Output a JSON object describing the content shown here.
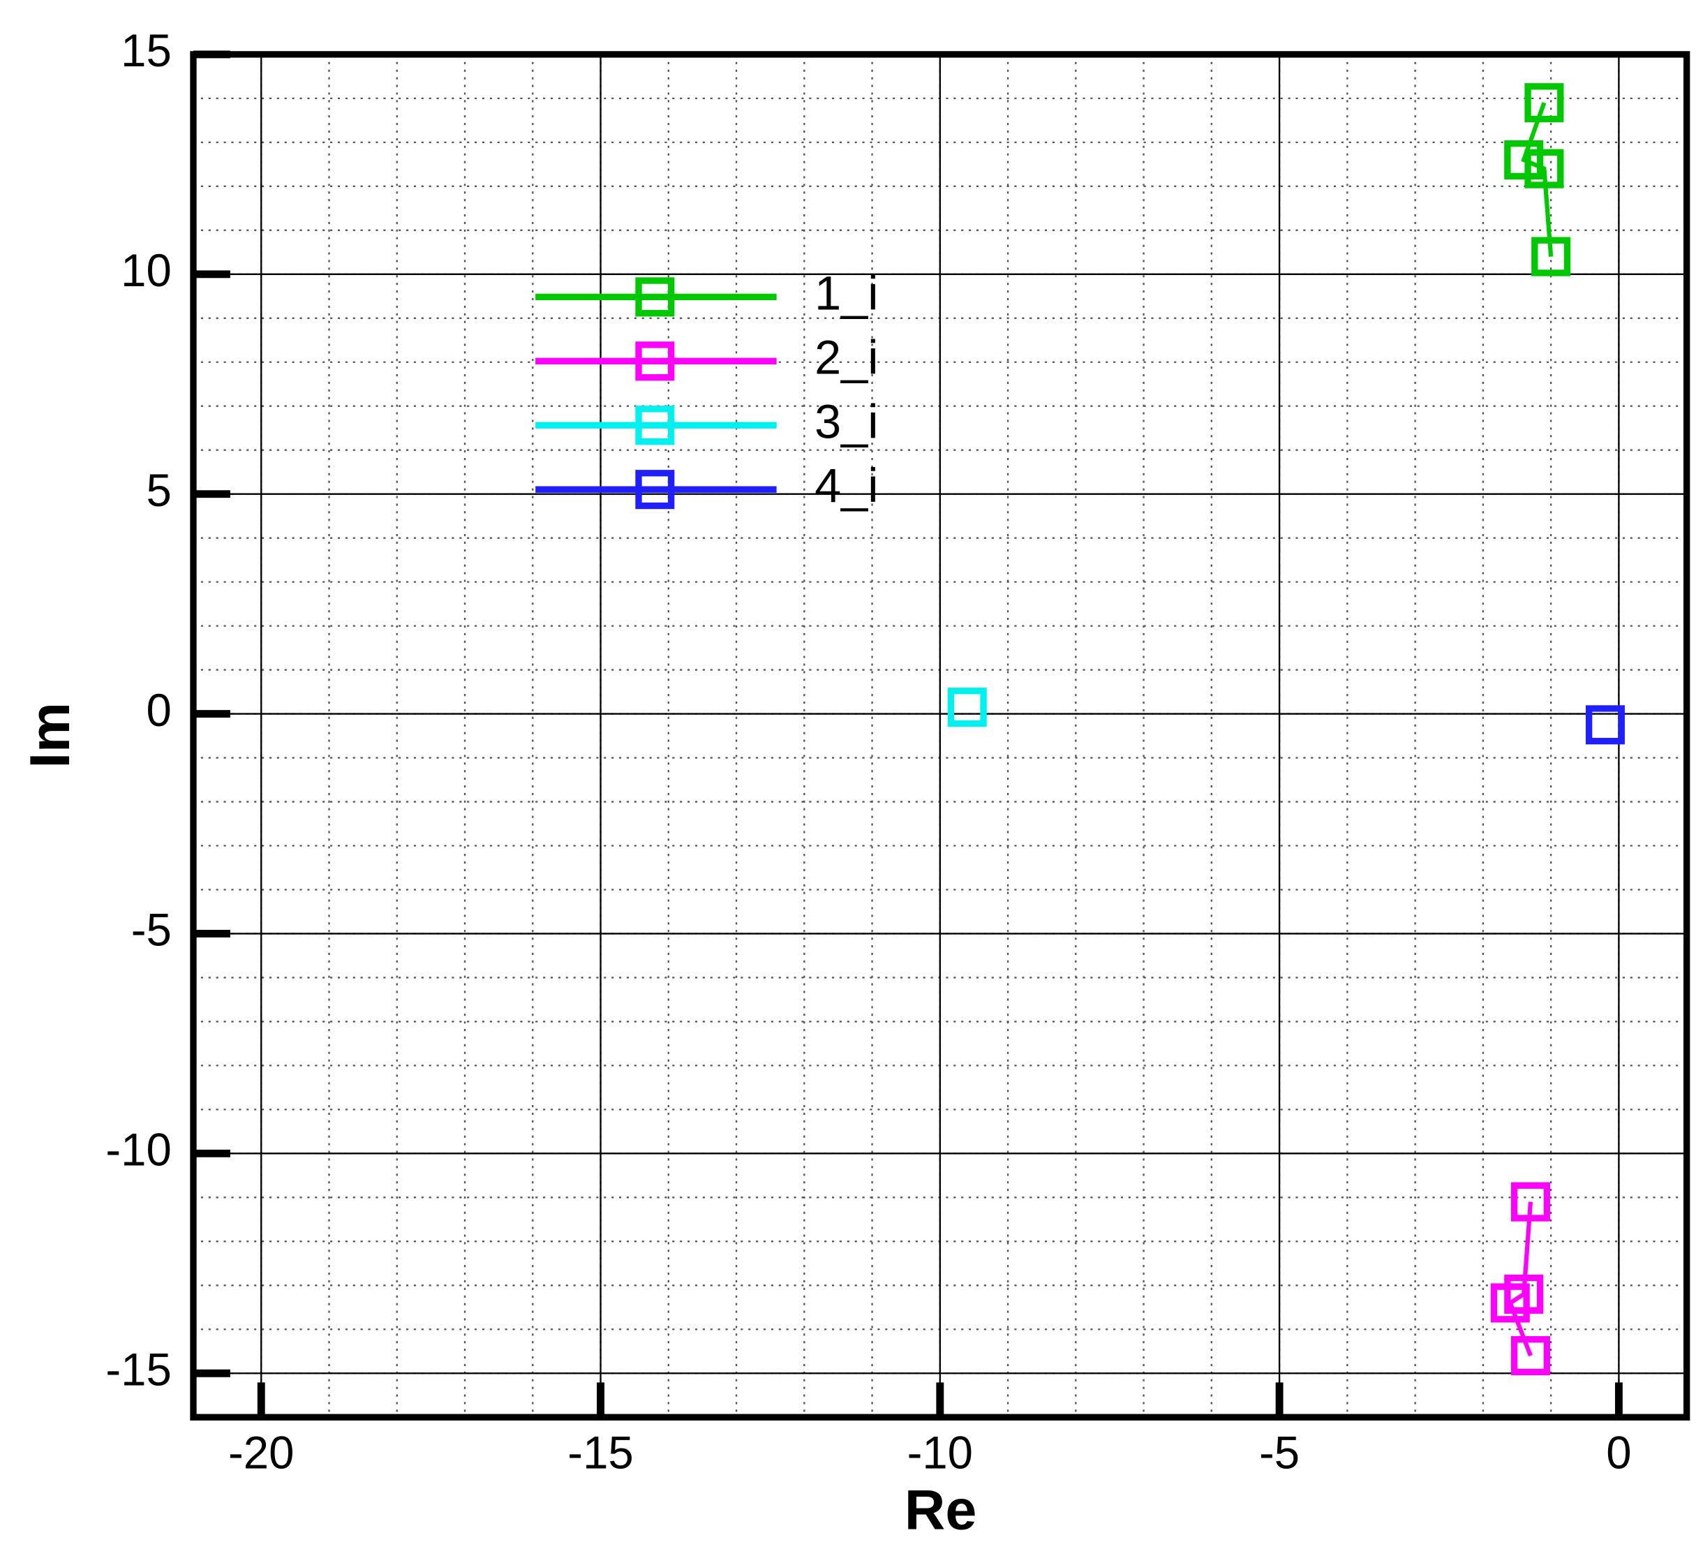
{
  "chart_data": {
    "type": "line",
    "x_label": "Re",
    "y_label": "Im",
    "xlim": [
      -21,
      1
    ],
    "ylim": [
      -16,
      15
    ],
    "xticks": [
      -20,
      -15,
      -10,
      -5,
      0
    ],
    "yticks": [
      -15,
      -10,
      -5,
      0,
      5,
      10,
      15
    ],
    "minor_step": 1,
    "grid": true,
    "series": [
      {
        "name": "1_i",
        "color": "#00c800",
        "x": [
          -1.1,
          -1.4,
          -1.1,
          -1.0
        ],
        "values": [
          13.9,
          12.6,
          12.4,
          10.4
        ]
      },
      {
        "name": "2_i",
        "color": "#ff00ff",
        "x": [
          -1.3,
          -1.4,
          -1.6,
          -1.3
        ],
        "values": [
          -11.1,
          -13.2,
          -13.4,
          -14.6
        ]
      },
      {
        "name": "3_i",
        "color": "#00f0f0",
        "x": [
          -9.6
        ],
        "values": [
          0.15
        ]
      },
      {
        "name": "4_i",
        "color": "#2020ff",
        "x": [
          -0.2
        ],
        "values": [
          -0.25
        ]
      }
    ]
  }
}
